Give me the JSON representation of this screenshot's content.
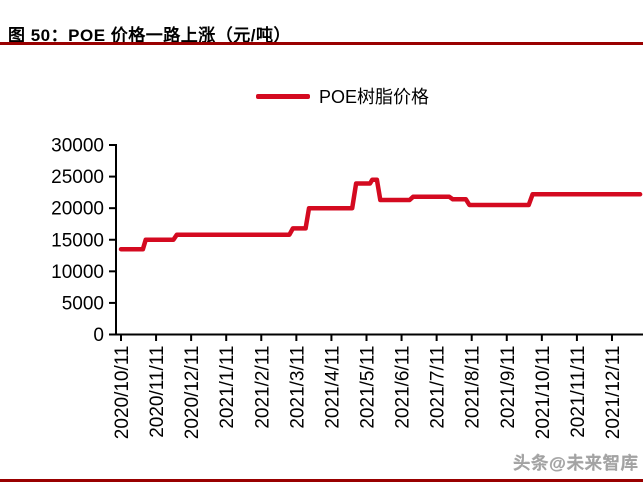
{
  "figure": {
    "title": "图 50：POE 价格一路上涨（元/吨）",
    "watermark": "头条@未来智库"
  },
  "colors": {
    "series_red": "#d40a20",
    "rule_dark_red": "#990000",
    "axis_black": "#000000",
    "watermark_gray": "#9a9a9a"
  },
  "chart_data": {
    "type": "line",
    "title": "POE 价格一路上涨（元/吨）",
    "unit": "元/吨",
    "grid": false,
    "legend_position": "top-center",
    "legend": [
      {
        "name": "POE树脂价格",
        "color": "#d40a20"
      }
    ],
    "ylim": [
      0,
      30000
    ],
    "yticks": [
      0,
      5000,
      10000,
      15000,
      20000,
      25000,
      30000
    ],
    "xtick_labels": [
      "2020/10/11",
      "2020/11/11",
      "2020/12/11",
      "2021/1/11",
      "2021/2/11",
      "2021/3/11",
      "2021/4/11",
      "2021/5/11",
      "2021/6/11",
      "2021/7/11",
      "2021/8/11",
      "2021/9/11",
      "2021/10/11",
      "2021/11/11",
      "2021/12/11"
    ],
    "series": [
      {
        "name": "POE树脂价格",
        "style": "step",
        "points": [
          [
            "2020/10/11",
            13500
          ],
          [
            "2020/10/30",
            13500
          ],
          [
            "2020/11/02",
            15000
          ],
          [
            "2020/11/26",
            15000
          ],
          [
            "2020/11/29",
            15800
          ],
          [
            "2021/03/05",
            15800
          ],
          [
            "2021/03/08",
            16800
          ],
          [
            "2021/03/19",
            16800
          ],
          [
            "2021/03/22",
            20000
          ],
          [
            "2021/04/29",
            20000
          ],
          [
            "2021/05/02",
            23900
          ],
          [
            "2021/05/14",
            23900
          ],
          [
            "2021/05/16",
            24500
          ],
          [
            "2021/05/20",
            24500
          ],
          [
            "2021/05/23",
            21300
          ],
          [
            "2021/06/18",
            21300
          ],
          [
            "2021/06/21",
            21800
          ],
          [
            "2021/07/22",
            21800
          ],
          [
            "2021/07/25",
            21400
          ],
          [
            "2021/08/06",
            21400
          ],
          [
            "2021/08/09",
            20500
          ],
          [
            "2021/09/30",
            20500
          ],
          [
            "2021/10/03",
            22200
          ],
          [
            "2022/01/05",
            22200
          ]
        ]
      }
    ]
  }
}
